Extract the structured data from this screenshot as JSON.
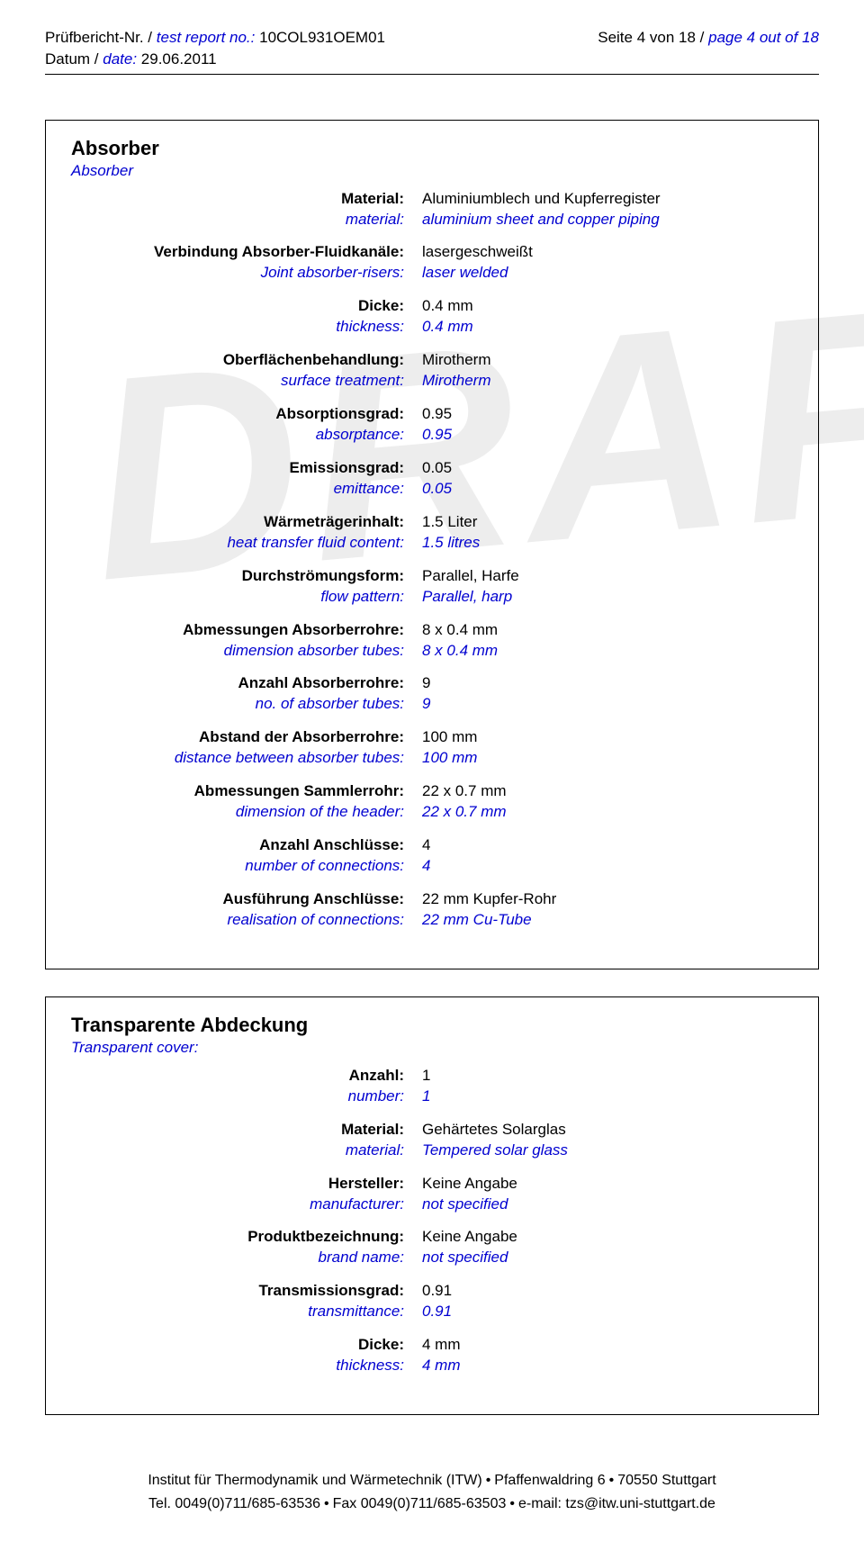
{
  "header": {
    "report_label_de": "Prüfbericht-Nr. / ",
    "report_label_en": "test report no.:",
    "report_no": " 10COL931OEM01",
    "date_label_de": "Datum / ",
    "date_label_en": "date:",
    "date_value": " 29.06.2011",
    "page_label_de": "Seite 4 von 18 / ",
    "page_label_en": "page 4 out of 18"
  },
  "watermark": "DRAFT",
  "section1": {
    "title_de": "Absorber",
    "title_en": "Absorber",
    "rows": [
      {
        "lde": "Material:",
        "len": "material:",
        "vde": "Aluminiumblech und Kupferregister",
        "ven": "aluminium sheet and copper piping"
      },
      {
        "lde": "Verbindung Absorber-Fluidkanäle:",
        "len": "Joint absorber-risers:",
        "vde": "lasergeschweißt",
        "ven": "laser welded"
      },
      {
        "lde": "Dicke:",
        "len": "thickness:",
        "vde": "0.4 mm",
        "ven": "0.4 mm"
      },
      {
        "lde": "Oberflächenbehandlung:",
        "len": "surface treatment:",
        "vde": "Mirotherm",
        "ven": "Mirotherm"
      },
      {
        "lde": "Absorptionsgrad:",
        "len": "absorptance:",
        "vde": "0.95",
        "ven": "0.95"
      },
      {
        "lde": "Emissionsgrad:",
        "len": "emittance:",
        "vde": "0.05",
        "ven": "0.05"
      },
      {
        "lde": "Wärmeträgerinhalt:",
        "len": "heat transfer fluid content:",
        "vde": "1.5 Liter",
        "ven": "1.5 litres"
      },
      {
        "lde": "Durchströmungsform:",
        "len": "flow pattern:",
        "vde": "Parallel, Harfe",
        "ven": "Parallel, harp"
      },
      {
        "lde": "Abmessungen Absorberrohre:",
        "len": "dimension absorber tubes:",
        "vde": "8 x 0.4 mm",
        "ven": "8 x 0.4 mm"
      },
      {
        "lde": "Anzahl Absorberrohre:",
        "len": "no. of absorber tubes:",
        "vde": "9",
        "ven": "9"
      },
      {
        "lde": "Abstand der Absorberrohre:",
        "len": "distance between absorber tubes:",
        "vde": "100 mm",
        "ven": "100 mm"
      },
      {
        "lde": "Abmessungen Sammlerrohr:",
        "len": "dimension of the header:",
        "vde": "22 x 0.7 mm",
        "ven": "22 x 0.7 mm"
      },
      {
        "lde": "Anzahl Anschlüsse:",
        "len": "number of connections:",
        "vde": "4",
        "ven": "4"
      },
      {
        "lde": "Ausführung Anschlüsse:",
        "len": "realisation of connections:",
        "vde": "22 mm Kupfer-Rohr",
        "ven": "22 mm Cu-Tube"
      }
    ]
  },
  "section2": {
    "title_de": "Transparente Abdeckung",
    "title_en": "Transparent cover:",
    "rows": [
      {
        "lde": "Anzahl:",
        "len": "number:",
        "vde": "1",
        "ven": "1"
      },
      {
        "lde": "Material:",
        "len": "material:",
        "vde": "Gehärtetes Solarglas",
        "ven": "Tempered solar glass"
      },
      {
        "lde": "Hersteller:",
        "len": "manufacturer:",
        "vde": "Keine Angabe",
        "ven": "not specified"
      },
      {
        "lde": "Produktbezeichnung:",
        "len": "brand name:",
        "vde": "Keine Angabe",
        "ven": "not specified"
      },
      {
        "lde": "Transmissionsgrad:",
        "len": "transmittance:",
        "vde": "0.91",
        "ven": "0.91"
      },
      {
        "lde": "Dicke:",
        "len": "thickness:",
        "vde": "4 mm",
        "ven": "4 mm"
      }
    ]
  },
  "footer": {
    "line1_a": "Institut für Thermodynamik und Wärmetechnik (ITW)",
    "line1_b": "Pfaffenwaldring 6",
    "line1_c": "70550 Stuttgart",
    "line2_a": "Tel. 0049(0)711/685-63536",
    "line2_b": "Fax 0049(0)711/685-63503",
    "line2_c": "e-mail: tzs@itw.uni-stuttgart.de"
  }
}
